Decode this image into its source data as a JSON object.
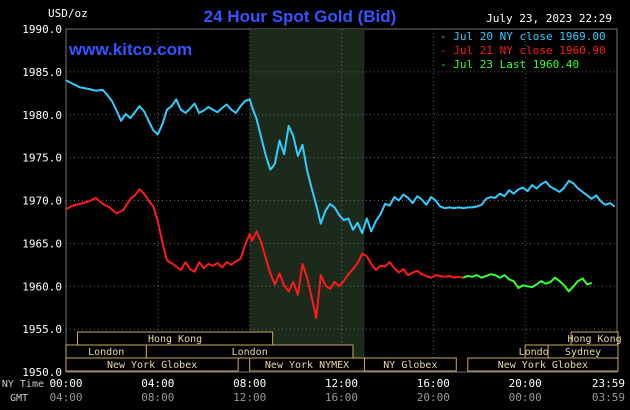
{
  "header": {
    "title": "24 Hour Spot Gold (Bid)",
    "date": "July 23, 2023 22:29",
    "watermark": "www.kitco.com",
    "unit": "USD/oz"
  },
  "legend": [
    {
      "label": "Jul 20 NY close 1969.00",
      "color": "#33ccff"
    },
    {
      "label": "Jul 21 NY close 1960.90",
      "color": "#ff1a1a"
    },
    {
      "label": "Jul 23 Last 1960.40",
      "color": "#33ff33"
    }
  ],
  "sessions": [
    {
      "label": "Hong Kong",
      "row": 0,
      "start": 0.5,
      "end": 9.0
    },
    {
      "label": "Hong Kong",
      "row": 0,
      "start": 22.0,
      "end": 26.0
    },
    {
      "label": "London",
      "row": 1,
      "start": 0.0,
      "end": 3.5
    },
    {
      "label": "London",
      "row": 1,
      "start": 3.5,
      "end": 12.5
    },
    {
      "label": "London",
      "row": 1,
      "start": 20.0,
      "end": 21.0
    },
    {
      "label": "Sydney",
      "row": 1,
      "start": 21.0,
      "end": 26.0
    },
    {
      "label": "New York Globex",
      "row": 2,
      "start": 0.0,
      "end": 7.5
    },
    {
      "label": "New York NYMEX",
      "row": 2,
      "start": 8.0,
      "end": 13.0
    },
    {
      "label": "NY Globex",
      "row": 2,
      "start": 13.0,
      "end": 17.0
    },
    {
      "label": "New York Globex",
      "row": 2,
      "start": 17.5,
      "end": 26.0
    }
  ],
  "axis_labels": {
    "ny_time": "NY Time",
    "gmt": "GMT"
  },
  "chart_data": {
    "type": "line",
    "x_range": [
      0,
      24
    ],
    "ylim": [
      1950,
      1990
    ],
    "yticks": [
      "1950.0",
      "1955.0",
      "1960.0",
      "1965.0",
      "1970.0",
      "1975.0",
      "1980.0",
      "1985.0",
      "1990.0"
    ],
    "xticks_ny": [
      "00:00",
      "04:00",
      "08:00",
      "12:00",
      "16:00",
      "20:00",
      "23:59"
    ],
    "xticks_gmt": [
      "04:00",
      "08:00",
      "12:00",
      "16:00",
      "20:00",
      "00:00",
      "03:59"
    ],
    "grid": true,
    "legend_position": "top-right",
    "series": [
      {
        "name": "Jul 20 NY close 1969.00",
        "color": "#33ccff",
        "x": [
          0,
          0.3,
          0.6,
          1.0,
          1.3,
          1.6,
          1.8,
          2.0,
          2.2,
          2.4,
          2.6,
          2.8,
          3.0,
          3.2,
          3.4,
          3.6,
          3.8,
          4.0,
          4.2,
          4.4,
          4.6,
          4.8,
          5.0,
          5.2,
          5.4,
          5.6,
          5.8,
          6.0,
          6.2,
          6.4,
          6.6,
          6.8,
          7.0,
          7.2,
          7.4,
          7.6,
          7.8,
          8.0,
          8.1,
          8.3,
          8.5,
          8.7,
          8.9,
          9.0,
          9.1,
          9.3,
          9.5,
          9.7,
          9.9,
          10.1,
          10.3,
          10.5,
          10.7,
          10.9,
          11.1,
          11.3,
          11.5,
          11.7,
          11.9,
          12.1,
          12.3,
          12.5,
          12.7,
          12.9,
          13.1,
          13.3,
          13.5,
          13.7,
          13.9,
          14.1,
          14.3,
          14.5,
          14.7,
          14.9,
          15.1,
          15.3,
          15.5,
          15.7,
          15.9,
          16.1,
          16.3,
          16.5,
          16.7,
          16.9,
          17.1,
          17.3,
          17.5,
          17.7,
          17.9,
          18.1,
          18.3,
          18.5,
          18.7,
          18.9,
          19.1,
          19.3,
          19.5,
          19.7,
          19.9,
          20.1,
          20.3,
          20.5,
          20.7,
          20.9,
          21.1,
          21.3,
          21.5,
          21.7,
          21.9,
          22.1,
          22.3,
          22.5,
          22.7,
          22.9,
          23.1,
          23.3,
          23.5,
          23.7,
          23.9
        ],
        "values": [
          1984.0,
          1983.6,
          1983.2,
          1983.0,
          1982.8,
          1982.9,
          1982.3,
          1981.6,
          1980.5,
          1979.3,
          1980.1,
          1979.6,
          1980.3,
          1981.0,
          1980.4,
          1979.3,
          1978.2,
          1977.7,
          1978.9,
          1980.6,
          1981.0,
          1981.8,
          1980.6,
          1980.2,
          1980.7,
          1981.3,
          1980.2,
          1980.5,
          1980.9,
          1980.6,
          1980.3,
          1980.8,
          1981.2,
          1980.6,
          1980.2,
          1981.0,
          1981.6,
          1981.8,
          1980.9,
          1979.5,
          1977.4,
          1975.3,
          1973.6,
          1973.9,
          1974.3,
          1977.0,
          1975.4,
          1978.7,
          1977.5,
          1975.2,
          1976.5,
          1973.5,
          1971.4,
          1969.5,
          1967.3,
          1968.8,
          1969.6,
          1969.2,
          1968.3,
          1967.7,
          1967.9,
          1966.6,
          1967.4,
          1966.2,
          1967.9,
          1966.4,
          1967.6,
          1968.4,
          1969.6,
          1969.4,
          1970.4,
          1970.0,
          1970.7,
          1970.3,
          1969.7,
          1970.5,
          1970.1,
          1969.5,
          1970.4,
          1970.0,
          1969.3,
          1969.1,
          1969.2,
          1969.1,
          1969.2,
          1969.1,
          1969.2,
          1969.2,
          1969.3,
          1969.5,
          1970.2,
          1970.4,
          1970.3,
          1970.8,
          1970.5,
          1971.2,
          1970.8,
          1971.3,
          1971.5,
          1971.1,
          1971.8,
          1971.4,
          1971.9,
          1972.2,
          1971.6,
          1971.3,
          1971.0,
          1971.5,
          1972.3,
          1972.0,
          1971.4,
          1971.0,
          1970.6,
          1970.2,
          1970.6,
          1969.9,
          1969.5,
          1969.7,
          1969.3
        ]
      },
      {
        "name": "Jul 21 NY close 1960.90",
        "color": "#ff1a1a",
        "x": [
          0,
          0.3,
          0.6,
          1.0,
          1.3,
          1.6,
          1.9,
          2.2,
          2.5,
          2.8,
          3.0,
          3.2,
          3.4,
          3.6,
          3.8,
          4.0,
          4.2,
          4.4,
          4.6,
          4.8,
          5.0,
          5.2,
          5.4,
          5.6,
          5.8,
          6.0,
          6.2,
          6.4,
          6.6,
          6.8,
          7.0,
          7.2,
          7.4,
          7.6,
          7.8,
          8.0,
          8.1,
          8.3,
          8.5,
          8.7,
          8.9,
          9.1,
          9.3,
          9.5,
          9.7,
          9.9,
          10.1,
          10.3,
          10.5,
          10.7,
          10.9,
          11.1,
          11.3,
          11.5,
          11.7,
          11.9,
          12.1,
          12.3,
          12.5,
          12.7,
          12.9,
          13.1,
          13.3,
          13.5,
          13.7,
          13.9,
          14.1,
          14.3,
          14.5,
          14.7,
          14.9,
          15.1,
          15.3,
          15.5,
          15.7,
          15.9,
          16.1,
          16.3,
          16.5,
          16.7,
          16.9,
          17.1,
          17.3
        ],
        "values": [
          1969.0,
          1969.4,
          1969.6,
          1969.9,
          1970.3,
          1969.6,
          1969.2,
          1968.5,
          1968.9,
          1970.2,
          1970.6,
          1971.3,
          1970.8,
          1970.0,
          1969.3,
          1967.6,
          1965.1,
          1963.0,
          1962.7,
          1962.3,
          1961.9,
          1962.8,
          1962.0,
          1961.7,
          1962.8,
          1962.1,
          1962.6,
          1962.4,
          1962.7,
          1962.2,
          1962.8,
          1962.5,
          1962.9,
          1963.2,
          1964.8,
          1966.1,
          1965.3,
          1966.4,
          1965.2,
          1963.3,
          1961.5,
          1960.2,
          1961.5,
          1960.1,
          1959.4,
          1960.5,
          1959.0,
          1962.6,
          1961.0,
          1958.7,
          1956.3,
          1961.3,
          1960.1,
          1959.7,
          1960.5,
          1960.0,
          1960.6,
          1961.4,
          1962.0,
          1962.7,
          1963.8,
          1963.5,
          1962.6,
          1961.9,
          1962.4,
          1962.3,
          1962.8,
          1962.1,
          1961.6,
          1962.0,
          1961.3,
          1961.6,
          1961.8,
          1961.4,
          1961.2,
          1961.0,
          1961.3,
          1961.2,
          1961.1,
          1961.2,
          1961.0,
          1961.1,
          1961.0
        ]
      },
      {
        "name": "Jul 23 Last 1960.40",
        "color": "#33ff33",
        "x": [
          17.3,
          17.5,
          17.7,
          17.9,
          18.1,
          18.3,
          18.5,
          18.7,
          18.9,
          19.1,
          19.3,
          19.5,
          19.7,
          19.9,
          20.1,
          20.3,
          20.5,
          20.7,
          20.9,
          21.1,
          21.3,
          21.5,
          21.7,
          21.9,
          22.1,
          22.3,
          22.5,
          22.7,
          22.9
        ],
        "values": [
          1961.0,
          1961.2,
          1961.1,
          1961.3,
          1961.0,
          1961.2,
          1961.4,
          1961.3,
          1961.0,
          1961.3,
          1960.8,
          1960.6,
          1959.8,
          1960.1,
          1960.0,
          1959.9,
          1960.2,
          1960.6,
          1960.3,
          1960.5,
          1961.0,
          1960.6,
          1960.1,
          1959.4,
          1960.0,
          1960.6,
          1960.9,
          1960.2,
          1960.4
        ]
      }
    ]
  }
}
